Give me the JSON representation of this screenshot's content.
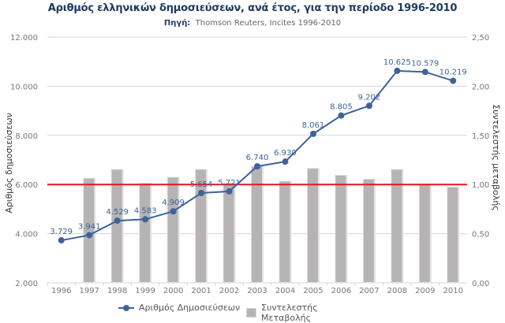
{
  "chart_data": {
    "type": "bar+line",
    "title": "Αριθμός ελληνικών δημοσιεύσεων, ανά έτος, για την περίοδο 1996-2010",
    "subtitle_label": "Πηγή:",
    "subtitle_text": "Thomson Reuters, Incites 1996-2010",
    "categories": [
      "1996",
      "1997",
      "1998",
      "1999",
      "2000",
      "2001",
      "2002",
      "2003",
      "2004",
      "2005",
      "2006",
      "2007",
      "2008",
      "2009",
      "2010"
    ],
    "series": [
      {
        "name": "Αριθμός Δημοσιεύσεων",
        "type": "line",
        "axis": "left",
        "color": "#3d6399",
        "values": [
          3729,
          3941,
          4529,
          4583,
          4909,
          5654,
          5721,
          6740,
          6930,
          8061,
          8805,
          9202,
          10625,
          10579,
          10219
        ],
        "labels": [
          "3.729",
          "3.941",
          "4.529",
          "4.583",
          "4.909",
          "5.654",
          "5.721",
          "6.740",
          "6.930",
          "8.061",
          "8.805",
          "9.202",
          "10.625",
          "10.579",
          "10.219"
        ]
      },
      {
        "name": "Συντελεστής Μεταβολής",
        "type": "bar",
        "axis": "right",
        "color": "#b5b3b4",
        "values": [
          null,
          1.06,
          1.15,
          1.01,
          1.07,
          1.15,
          1.01,
          1.18,
          1.03,
          1.16,
          1.09,
          1.05,
          1.15,
          1.0,
          0.97
        ]
      }
    ],
    "reference_line": {
      "axis": "right",
      "value": 1.0,
      "color": "#e8141c"
    },
    "ylabel": "Αριθμός δημοσιεύσεων",
    "ylabel_right": "Συντελεστής μεταβολής",
    "ylim": [
      2000,
      12000
    ],
    "ylim_right": [
      0,
      2.5
    ],
    "yticks": [
      "2.000",
      "4.000",
      "6.000",
      "8.000",
      "10.000",
      "12.000"
    ],
    "yticks_values": [
      2000,
      4000,
      6000,
      8000,
      10000,
      12000
    ],
    "yticks_right": [
      "0,00",
      "0,50",
      "1,00",
      "1,50",
      "2,00",
      "2,50"
    ],
    "yticks_right_values": [
      0,
      0.5,
      1.0,
      1.5,
      2.0,
      2.5
    ],
    "grid": true,
    "legend_position": "bottom"
  }
}
